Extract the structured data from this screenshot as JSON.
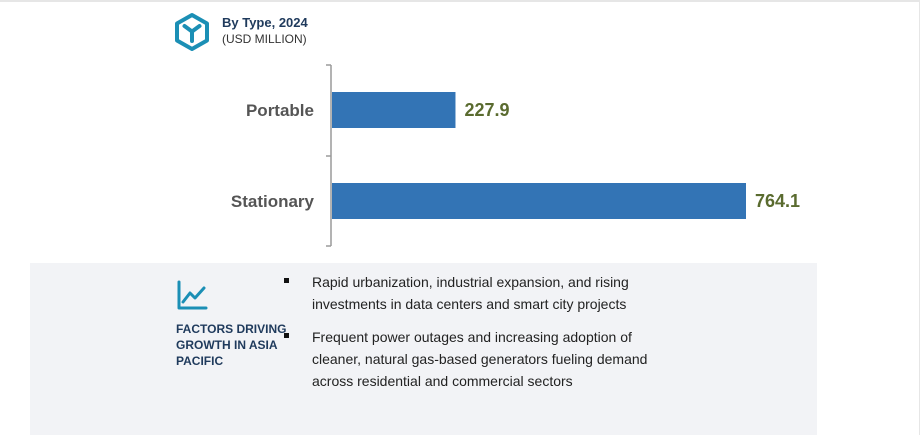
{
  "header": {
    "title": "By Type, 2024",
    "subtitle": "(USD MILLION)",
    "icon": "hexagon-y-icon"
  },
  "chart_data": {
    "type": "bar",
    "orientation": "horizontal",
    "title": "By Type, 2024",
    "unit_label": "(USD MILLION)",
    "categories": [
      "Portable",
      "Stationary"
    ],
    "values": [
      227.9,
      764.1
    ],
    "value_labels": [
      "227.9",
      "764.1"
    ],
    "xlim": [
      0,
      764.1
    ],
    "bar_color": "#3374b5",
    "label_color": "#555555",
    "value_color": "#5a6b2f",
    "axis_color": "#9a9a9a",
    "grid": false
  },
  "factors": {
    "icon": "line-chart-icon",
    "label": "FACTORS DRIVING GROWTH IN ASIA PACIFIC",
    "bullets": [
      "Rapid urbanization, industrial expansion, and rising investments in data centers and smart city projects",
      "Frequent power outages and increasing adoption of cleaner, natural gas-based generators fueling demand across residential and commercial sectors"
    ]
  },
  "colors": {
    "heading": "#1f3a5c",
    "icon_teal": "#1b8fb5",
    "panel_bg": "#f2f3f6"
  }
}
